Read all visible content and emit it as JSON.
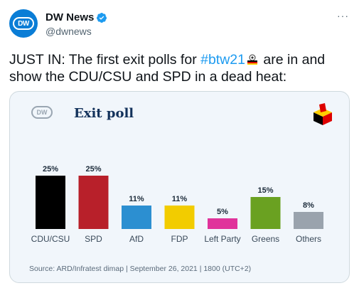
{
  "tweet": {
    "display_name": "DW News",
    "handle": "@dwnews",
    "more_label": "···",
    "avatar_text": "DW",
    "text_part1": "JUST IN: The first exit polls for ",
    "hashtag": "#btw21",
    "text_part2": " are in and show the CDU/CSU and SPD in a dead heat:",
    "colors": {
      "hashtag": "#1d9bf0",
      "verified": "#1d9bf0"
    }
  },
  "card": {
    "logo_text": "DW",
    "title": "Exit poll",
    "source": "Source: ARD/Infratest dimap | September 26, 2021 | 1800 (UTC+2)",
    "icon": "ballot-box-icon"
  },
  "chart_data": {
    "type": "bar",
    "title": "Exit poll",
    "categories": [
      "CDU/CSU",
      "SPD",
      "AfD",
      "FDP",
      "Left Party",
      "Greens",
      "Others"
    ],
    "values": [
      25,
      25,
      11,
      11,
      5,
      15,
      8
    ],
    "value_labels": [
      "25%",
      "25%",
      "11%",
      "11%",
      "5%",
      "15%",
      "8%"
    ],
    "colors": [
      "#000000",
      "#b8202a",
      "#2c8fd1",
      "#f2cc00",
      "#e0339b",
      "#6aa121",
      "#9aa3ad"
    ],
    "ylim": [
      0,
      25
    ],
    "xlabel": "",
    "ylabel": ""
  }
}
